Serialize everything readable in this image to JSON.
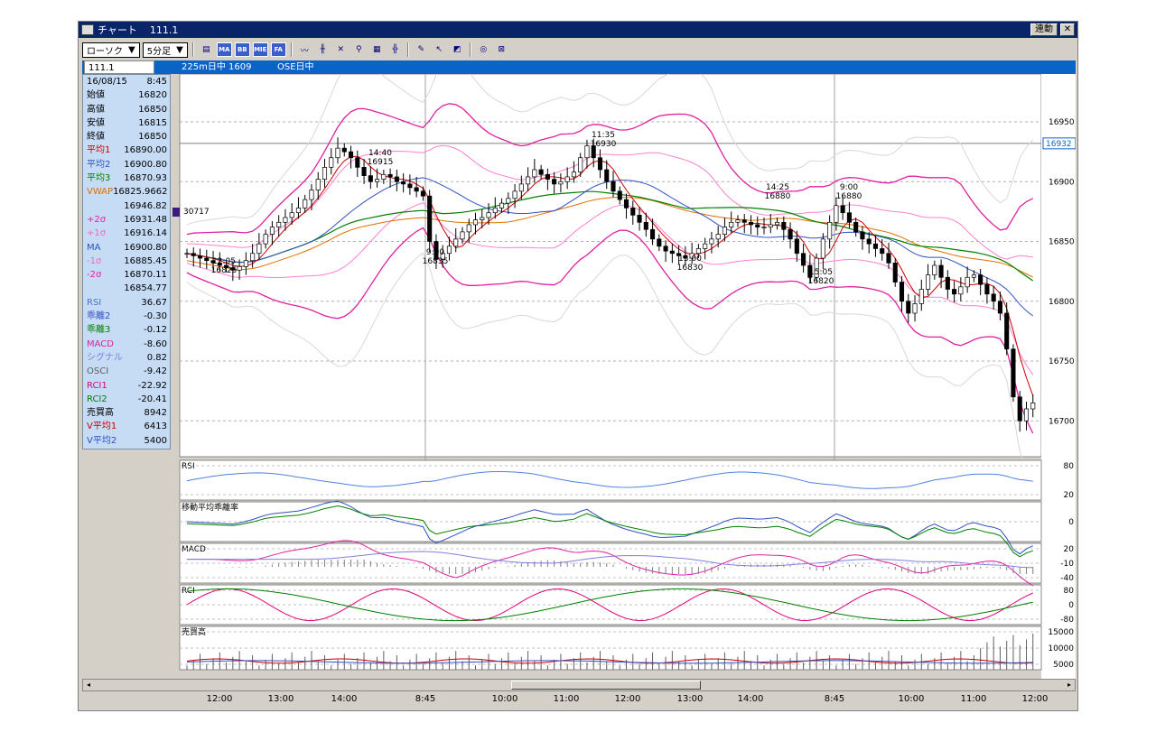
{
  "window": {
    "title": "チャート",
    "code": "111.1",
    "link_button": "連動",
    "close_button": "✕"
  },
  "toolbar": {
    "candle_select": "ローソク",
    "candle_arrow": "▼",
    "period_select": "5分足",
    "period_arrow": "▼",
    "buttons": [
      "MA",
      "BB",
      "MIE",
      "FA"
    ]
  },
  "infobar": {
    "code_value": "111.1",
    "label_a": "225m日中 1609",
    "label_b": "OSE日中"
  },
  "data_panel": [
    {
      "label": "16/08/15",
      "value": "8:45",
      "color": "#000000"
    },
    {
      "label": "始値",
      "value": "16820",
      "color": "#000000"
    },
    {
      "label": "高値",
      "value": "16850",
      "color": "#000000"
    },
    {
      "label": "安値",
      "value": "16815",
      "color": "#000000"
    },
    {
      "label": "終値",
      "value": "16850",
      "color": "#000000"
    },
    {
      "label": "平均1",
      "value": "16890.00",
      "color": "#cc0000"
    },
    {
      "label": "平均2",
      "value": "16900.80",
      "color": "#3050c0"
    },
    {
      "label": "平均3",
      "value": "16870.93",
      "color": "#008000"
    },
    {
      "label": "VWAP",
      "value": "16825.9662",
      "color": "#e07000"
    },
    {
      "label": "",
      "value": "16946.82",
      "color": "#000000"
    },
    {
      "label": "+2σ",
      "value": "16931.48",
      "color": "#e020a0"
    },
    {
      "label": "+1σ",
      "value": "16916.14",
      "color": "#ff60c0"
    },
    {
      "label": "MA",
      "value": "16900.80",
      "color": "#3050c0"
    },
    {
      "label": "-1σ",
      "value": "16885.45",
      "color": "#ff60c0"
    },
    {
      "label": "-2σ",
      "value": "16870.11",
      "color": "#e020a0"
    },
    {
      "label": "",
      "value": "16854.77",
      "color": "#000000"
    },
    {
      "label": "RSI",
      "value": "36.67",
      "color": "#5070d0"
    },
    {
      "label": "乖離2",
      "value": "-0.30",
      "color": "#3050c0"
    },
    {
      "label": "乖離3",
      "value": "-0.12",
      "color": "#008000"
    },
    {
      "label": "MACD",
      "value": "-8.60",
      "color": "#e020a0"
    },
    {
      "label": "シグナル",
      "value": "0.82",
      "color": "#8080e0"
    },
    {
      "label": "OSCI",
      "value": "-9.42",
      "color": "#606060"
    },
    {
      "label": "RCI1",
      "value": "-22.92",
      "color": "#e0007a"
    },
    {
      "label": "RCI2",
      "value": "-20.41",
      "color": "#008000"
    },
    {
      "label": "売買高",
      "value": "8942",
      "color": "#000000"
    },
    {
      "label": "V平均1",
      "value": "6413",
      "color": "#cc0000"
    },
    {
      "label": "V平均2",
      "value": "5400",
      "color": "#3050c0"
    }
  ],
  "main_chart": {
    "y_ticks": [
      "16950",
      "16900",
      "16850",
      "16800",
      "16750",
      "16700"
    ],
    "current_price": "16932",
    "left_marker": "30717",
    "annotations": [
      {
        "time": "12:05",
        "price": "16825"
      },
      {
        "time": "14:40",
        "price": "16915"
      },
      {
        "time": "9:00",
        "price": "16835"
      },
      {
        "time": "11:35",
        "price": "16930"
      },
      {
        "time": "14:25",
        "price": "16880"
      },
      {
        "time": "13:00",
        "price": "16830"
      },
      {
        "time": "9:00",
        "price": "16880"
      },
      {
        "time": "15:05",
        "price": "16820"
      }
    ]
  },
  "sub_charts": [
    {
      "name": "RSI",
      "ticks": [
        "80",
        "20"
      ]
    },
    {
      "name": "移動平均乖離率",
      "ticks": [
        "0"
      ]
    },
    {
      "name": "MACD",
      "ticks": [
        "20",
        "-10",
        "-40"
      ]
    },
    {
      "name": "RCI",
      "ticks": [
        "80",
        "0",
        "-80"
      ]
    },
    {
      "name": "売買高",
      "ticks": [
        "15000",
        "10000",
        "5000"
      ]
    }
  ],
  "x_labels": [
    "12:00",
    "13:00",
    "14:00",
    "8:45",
    "10:00",
    "11:00",
    "12:00",
    "13:00",
    "14:00",
    "8:45",
    "10:00",
    "11:00",
    "12:00"
  ],
  "chart_data": {
    "type": "candlestick",
    "y_range": [
      16670,
      16990
    ],
    "close_series": [
      16840,
      16838,
      16836,
      16834,
      16832,
      16830,
      16828,
      16826,
      16829,
      16834,
      16840,
      16848,
      16856,
      16862,
      16866,
      16870,
      16874,
      16878,
      16885,
      16893,
      16902,
      16912,
      16920,
      16928,
      16925,
      16920,
      16912,
      16905,
      16900,
      16902,
      16906,
      16904,
      16900,
      16898,
      16895,
      16892,
      16888,
      16850,
      16835,
      16840,
      16846,
      16852,
      16858,
      16864,
      16868,
      16870,
      16874,
      16878,
      16882,
      16886,
      16892,
      16898,
      16904,
      16910,
      16906,
      16902,
      16898,
      16900,
      16904,
      16908,
      16920,
      16930,
      16920,
      16910,
      16900,
      16892,
      16885,
      16878,
      16872,
      16866,
      16860,
      16852,
      16846,
      16842,
      16840,
      16838,
      16836,
      16840,
      16844,
      16848,
      16852,
      16856,
      16862,
      16866,
      16868,
      16866,
      16864,
      16862,
      16862,
      16864,
      16866,
      16860,
      16852,
      16840,
      16830,
      16820,
      16836,
      16852,
      16866,
      16880,
      16874,
      16866,
      16858,
      16852,
      16848,
      16844,
      16840,
      16832,
      16816,
      16800,
      16790,
      16798,
      16810,
      16822,
      16830,
      16820,
      16810,
      16806,
      16812,
      16820,
      16822,
      16814,
      16806,
      16800,
      16790,
      16760,
      16720,
      16700,
      16710,
      16715
    ]
  }
}
